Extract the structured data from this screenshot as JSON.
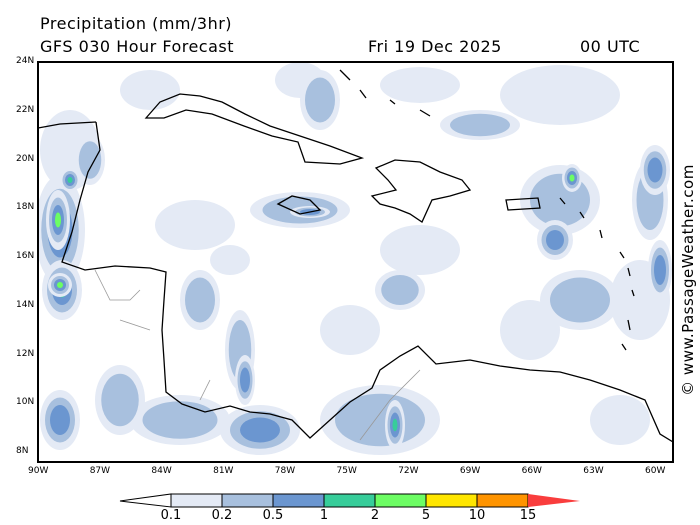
{
  "header": {
    "title": "Precipitation (mm/3hr)",
    "model": "GFS 030 Hour Forecast",
    "date": "Fri 19 Dec 2025",
    "time": "00 UTC"
  },
  "credit": "© www.PassageWeather.com",
  "lat_ticks": [
    "24N",
    "22N",
    "20N",
    "18N",
    "16N",
    "14N",
    "12N",
    "10N",
    "8N"
  ],
  "lon_ticks": [
    "90W",
    "87W",
    "84W",
    "81W",
    "78W",
    "75W",
    "72W",
    "69W",
    "66W",
    "63W",
    "60W"
  ],
  "legend": {
    "labels": [
      "0.1",
      "0.2",
      "0.5",
      "1",
      "2",
      "5",
      "10",
      "15"
    ],
    "colors": [
      "#ffffff",
      "#e4eaf5",
      "#a8c0de",
      "#6b96d0",
      "#37cd9a",
      "#6dfd64",
      "#ffe600",
      "#ff9400",
      "#f93d3d"
    ]
  }
}
